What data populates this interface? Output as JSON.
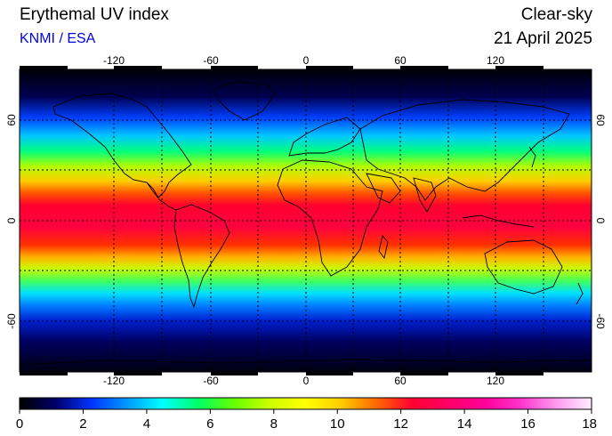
{
  "header": {
    "title": "Erythemal UV index",
    "credit": "KNMI / ESA",
    "product": "Clear-sky",
    "date": "21 April 2025"
  },
  "map": {
    "lon_ticks": [
      "-120",
      "-60",
      "0",
      "60",
      "120"
    ],
    "lat_ticks": [
      "60",
      "0",
      "-60"
    ],
    "grid": true,
    "background": "#000010"
  },
  "colorbar": {
    "ticks": [
      "0",
      "2",
      "4",
      "6",
      "8",
      "10",
      "12",
      "14",
      "16",
      "18"
    ],
    "min": 0,
    "max": 18,
    "colors": [
      "#000000",
      "#000066",
      "#0033ff",
      "#0099ff",
      "#00ffff",
      "#00ff66",
      "#66ff00",
      "#ccff00",
      "#ffff00",
      "#ffcc00",
      "#ff6600",
      "#ff0033",
      "#ff0066",
      "#ff0099",
      "#ff33cc",
      "#ff99ee",
      "#ffeeff"
    ]
  }
}
